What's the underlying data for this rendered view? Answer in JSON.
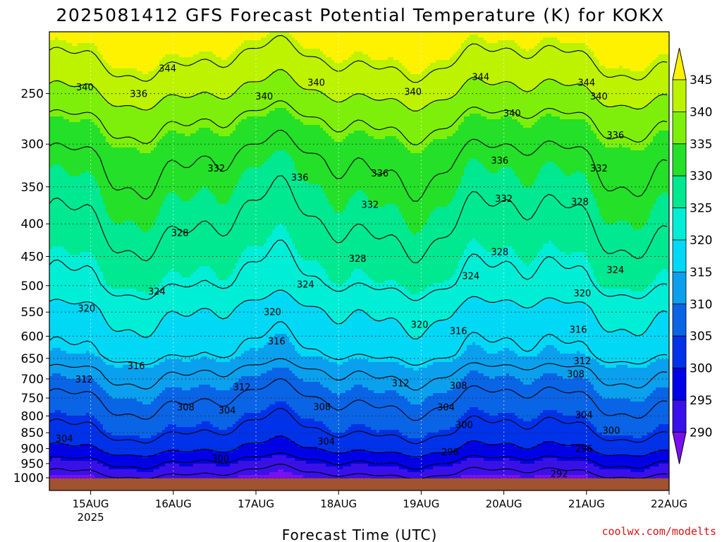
{
  "page": {
    "title": "2025081412 GFS Forecast Potential Temperature (K) for KOKX",
    "credit": "coolwx.com/modelts"
  },
  "chart_data": {
    "type": "heatmap",
    "title": "2025081412 GFS Forecast Potential Temperature (K) for KOKX",
    "xlabel": "Forecast Time (UTC)",
    "ylabel": "",
    "x_ticks": [
      {
        "label": "15AUG",
        "sub": "2025",
        "day": 15
      },
      {
        "label": "16AUG",
        "sub": "",
        "day": 16
      },
      {
        "label": "17AUG",
        "sub": "",
        "day": 17
      },
      {
        "label": "18AUG",
        "sub": "",
        "day": 18
      },
      {
        "label": "19AUG",
        "sub": "",
        "day": 19
      },
      {
        "label": "20AUG",
        "sub": "",
        "day": 20
      },
      {
        "label": "21AUG",
        "sub": "",
        "day": 21
      },
      {
        "label": "22AUG",
        "sub": "",
        "day": 22
      }
    ],
    "xlim_days": [
      14.5,
      22.0
    ],
    "y_ticks": [
      250,
      300,
      350,
      400,
      450,
      500,
      550,
      600,
      650,
      700,
      750,
      800,
      850,
      900,
      950,
      1000
    ],
    "ylim_hpa": [
      1000,
      200
    ],
    "y_scale": "log-pressure",
    "grid": "dotted",
    "colorbar": {
      "ticks": [
        345,
        340,
        335,
        330,
        325,
        320,
        315,
        310,
        305,
        300,
        295,
        290
      ],
      "bins": [
        {
          "low": 285,
          "high": 290,
          "color": "#7a0ff0"
        },
        {
          "low": 290,
          "high": 295,
          "color": "#3a10ea"
        },
        {
          "low": 295,
          "high": 300,
          "color": "#0000e8"
        },
        {
          "low": 300,
          "high": 305,
          "color": "#0032ea"
        },
        {
          "low": 305,
          "high": 310,
          "color": "#0a64e6"
        },
        {
          "low": 310,
          "high": 315,
          "color": "#0aa0ee"
        },
        {
          "low": 315,
          "high": 320,
          "color": "#00d8f6"
        },
        {
          "low": 320,
          "high": 325,
          "color": "#00eed6"
        },
        {
          "low": 325,
          "high": 330,
          "color": "#00e890"
        },
        {
          "low": 330,
          "high": 335,
          "color": "#24e028"
        },
        {
          "low": 335,
          "high": 340,
          "color": "#7eef0a"
        },
        {
          "low": 340,
          "high": 345,
          "color": "#bdf200"
        },
        {
          "low": 345,
          "high": 350,
          "color": "#fff200"
        }
      ]
    },
    "isentropes": [
      {
        "theta": 344,
        "p_start": 222,
        "slope_per_day": 0.0
      },
      {
        "theta": 340,
        "p_start": 250,
        "slope_per_day": 0.0
      },
      {
        "theta": 336,
        "p_start": 275,
        "slope_per_day": 0.0
      },
      {
        "theta": 332,
        "p_start": 315,
        "slope_per_day": 0.0
      },
      {
        "theta": 328,
        "p_start": 400,
        "slope_per_day": 0.0
      },
      {
        "theta": 324,
        "p_start": 495,
        "slope_per_day": 0.0
      },
      {
        "theta": 320,
        "p_start": 545,
        "slope_per_day": 0.0
      },
      {
        "theta": 316,
        "p_start": 640,
        "slope_per_day": 0.0
      },
      {
        "theta": 312,
        "p_start": 680,
        "slope_per_day": 0.0
      },
      {
        "theta": 308,
        "p_start": 755,
        "slope_per_day": 0.0
      },
      {
        "theta": 304,
        "p_start": 845,
        "slope_per_day": 0.0
      },
      {
        "theta": 300,
        "p_start": 905,
        "slope_per_day": 0.0
      },
      {
        "theta": 296,
        "p_start": 940,
        "slope_per_day": 0.0
      },
      {
        "theta": 292,
        "p_start": 985,
        "slope_per_day": 0.0
      }
    ],
    "contour_labels": [
      {
        "text": "344",
        "day": 15.93,
        "p": 228
      },
      {
        "text": "344",
        "day": 19.72,
        "p": 235
      },
      {
        "text": "344",
        "day": 21.0,
        "p": 240
      },
      {
        "text": "340",
        "day": 14.93,
        "p": 244
      },
      {
        "text": "340",
        "day": 17.1,
        "p": 252
      },
      {
        "text": "340",
        "day": 17.73,
        "p": 240
      },
      {
        "text": "340",
        "day": 18.9,
        "p": 248
      },
      {
        "text": "340",
        "day": 20.1,
        "p": 268
      },
      {
        "text": "340",
        "day": 21.15,
        "p": 252
      },
      {
        "text": "336",
        "day": 15.58,
        "p": 250
      },
      {
        "text": "336",
        "day": 17.53,
        "p": 338
      },
      {
        "text": "336",
        "day": 18.5,
        "p": 333
      },
      {
        "text": "336",
        "day": 19.95,
        "p": 318
      },
      {
        "text": "336",
        "day": 21.35,
        "p": 290
      },
      {
        "text": "332",
        "day": 16.52,
        "p": 327
      },
      {
        "text": "332",
        "day": 18.38,
        "p": 373
      },
      {
        "text": "332",
        "day": 20.0,
        "p": 365
      },
      {
        "text": "332",
        "day": 21.15,
        "p": 327
      },
      {
        "text": "328",
        "day": 16.08,
        "p": 413
      },
      {
        "text": "328",
        "day": 18.23,
        "p": 453
      },
      {
        "text": "328",
        "day": 19.95,
        "p": 442
      },
      {
        "text": "328",
        "day": 20.92,
        "p": 369
      },
      {
        "text": "324",
        "day": 15.8,
        "p": 510
      },
      {
        "text": "324",
        "day": 17.6,
        "p": 497
      },
      {
        "text": "324",
        "day": 19.6,
        "p": 482
      },
      {
        "text": "324",
        "day": 21.35,
        "p": 472
      },
      {
        "text": "320",
        "day": 14.95,
        "p": 542
      },
      {
        "text": "320",
        "day": 17.2,
        "p": 549
      },
      {
        "text": "320",
        "day": 18.98,
        "p": 575
      },
      {
        "text": "320",
        "day": 20.95,
        "p": 513
      },
      {
        "text": "316",
        "day": 15.55,
        "p": 667
      },
      {
        "text": "316",
        "day": 17.25,
        "p": 610
      },
      {
        "text": "316",
        "day": 19.45,
        "p": 588
      },
      {
        "text": "316",
        "day": 20.9,
        "p": 585
      },
      {
        "text": "312",
        "day": 14.92,
        "p": 700
      },
      {
        "text": "312",
        "day": 16.83,
        "p": 720
      },
      {
        "text": "312",
        "day": 18.75,
        "p": 710
      },
      {
        "text": "312",
        "day": 20.95,
        "p": 655
      },
      {
        "text": "308",
        "day": 16.15,
        "p": 774
      },
      {
        "text": "308",
        "day": 17.8,
        "p": 773
      },
      {
        "text": "308",
        "day": 19.45,
        "p": 716
      },
      {
        "text": "308",
        "day": 20.87,
        "p": 687
      },
      {
        "text": "304",
        "day": 14.68,
        "p": 867
      },
      {
        "text": "304",
        "day": 16.65,
        "p": 783
      },
      {
        "text": "304",
        "day": 17.85,
        "p": 876
      },
      {
        "text": "304",
        "day": 19.3,
        "p": 774
      },
      {
        "text": "304",
        "day": 20.97,
        "p": 796
      },
      {
        "text": "300",
        "day": 16.57,
        "p": 932
      },
      {
        "text": "300",
        "day": 19.52,
        "p": 825
      },
      {
        "text": "300",
        "day": 21.3,
        "p": 842
      },
      {
        "text": "296",
        "day": 19.35,
        "p": 910
      },
      {
        "text": "296",
        "day": 20.97,
        "p": 900
      },
      {
        "text": "292",
        "day": 20.67,
        "p": 985
      }
    ]
  }
}
